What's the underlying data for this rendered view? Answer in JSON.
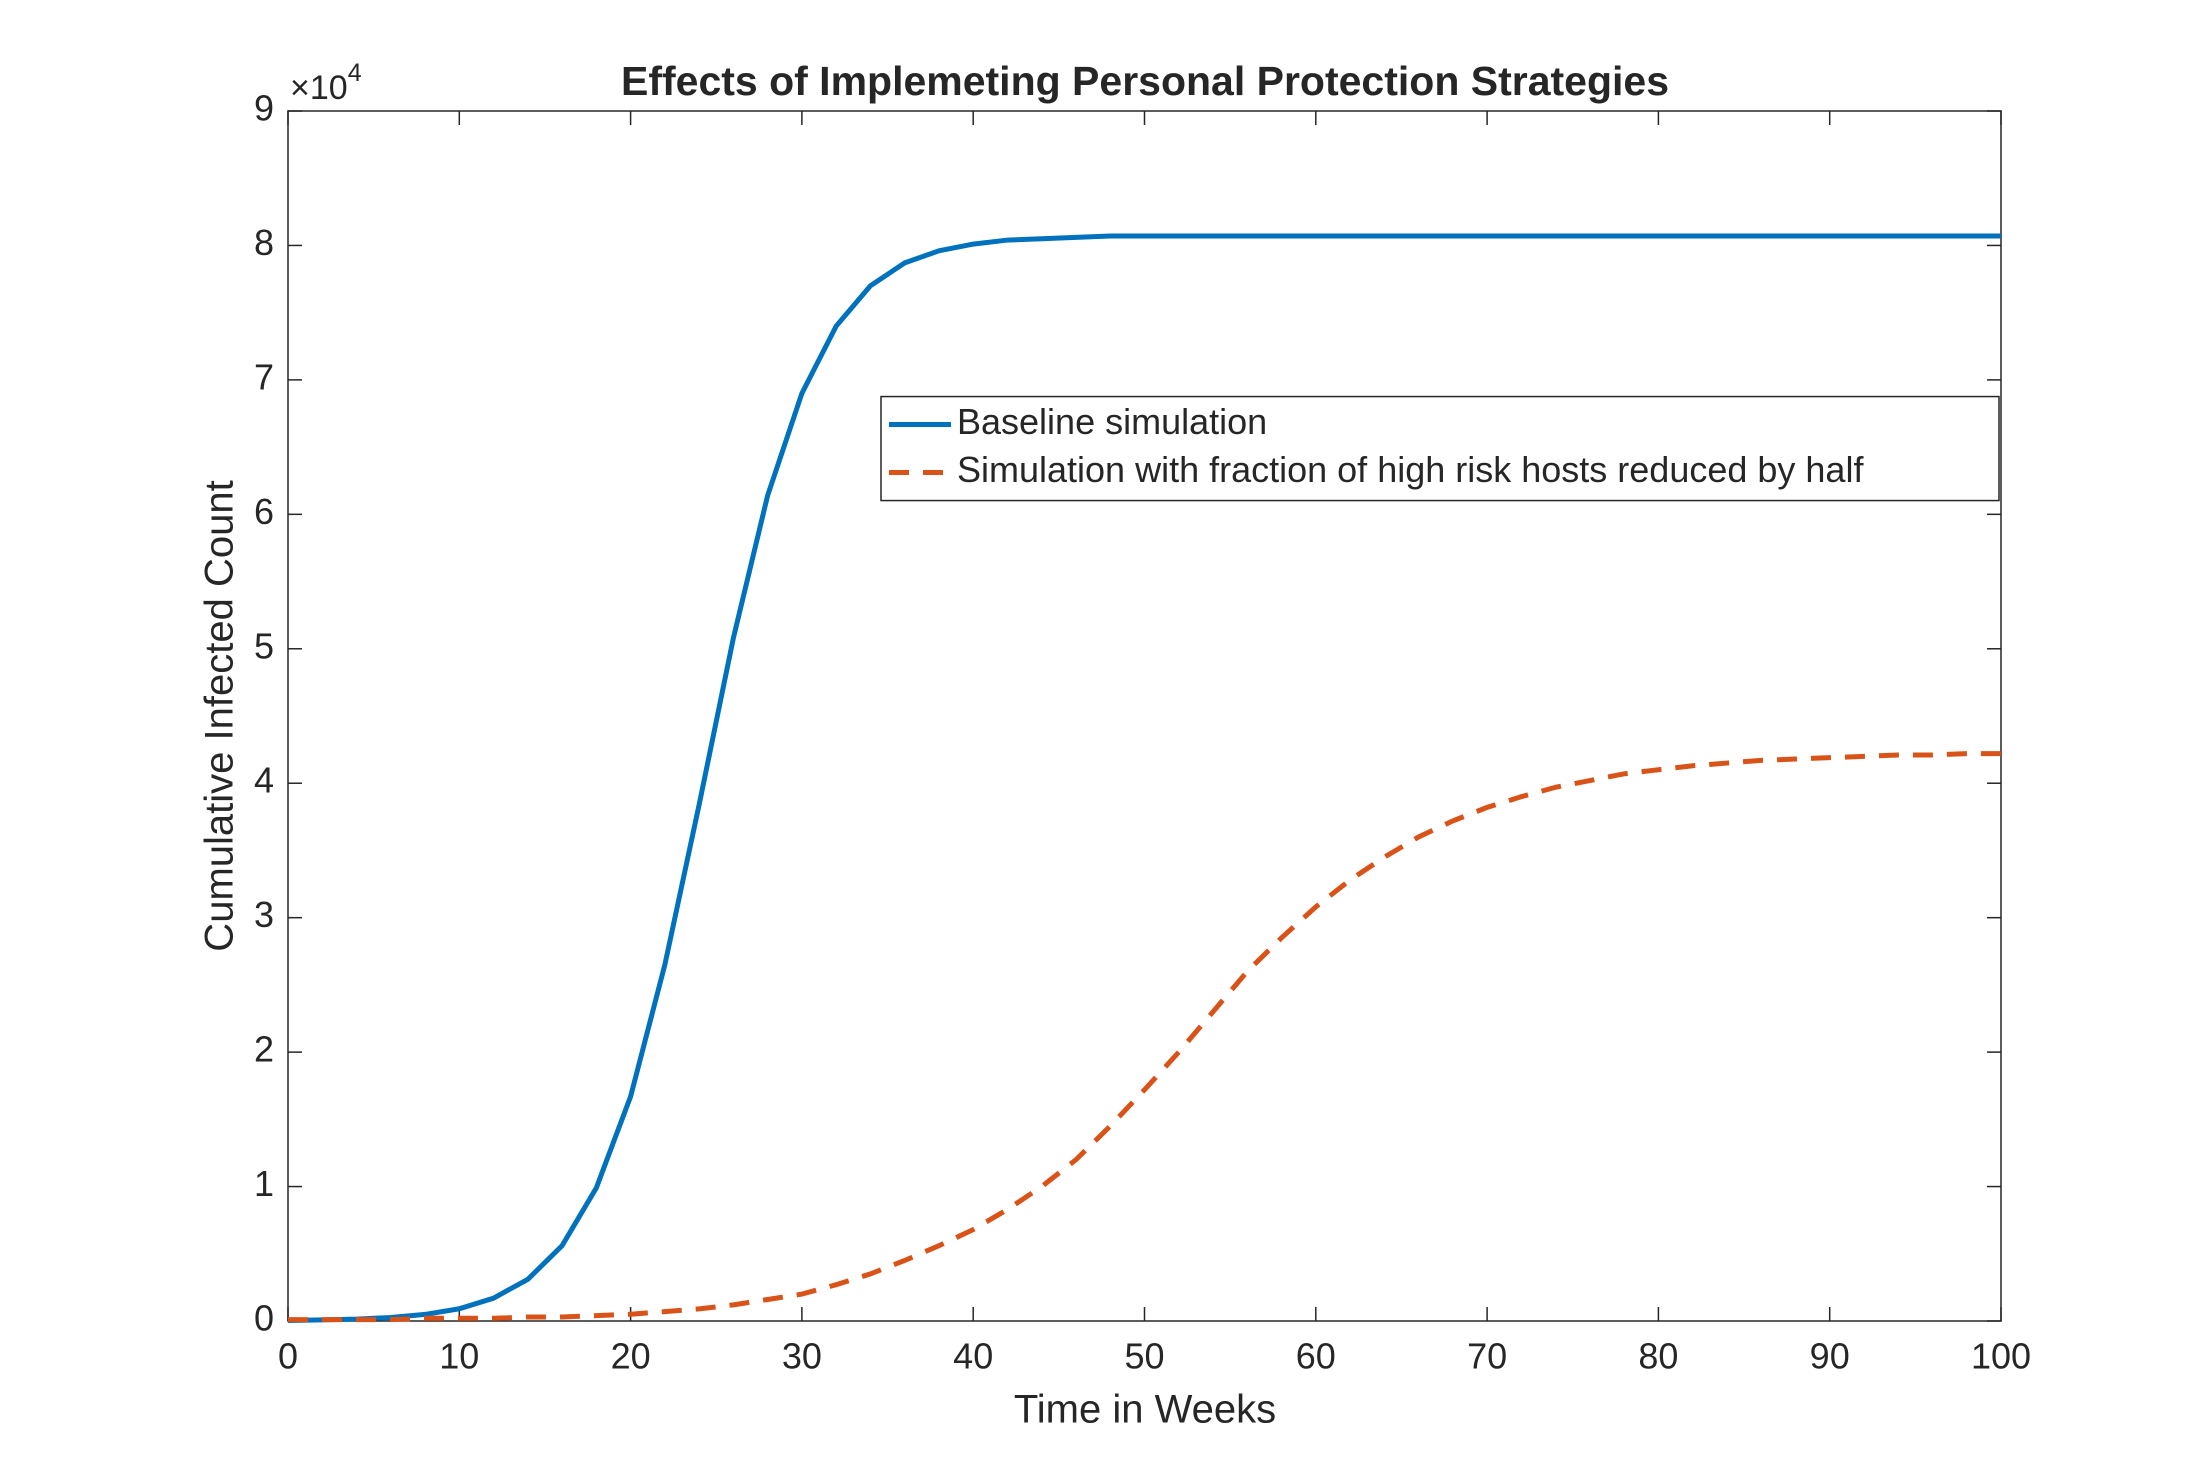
{
  "chart_data": {
    "type": "line",
    "title": "Effects of Implemeting Personal Protection Strategies",
    "x_label": "Time in Weeks",
    "y_label": "Cumulative Infected Count",
    "y_scale_label": "×10",
    "y_scale_exponent": "4",
    "xlim": [
      0,
      100
    ],
    "ylim": [
      0,
      9
    ],
    "xticks": [
      0,
      10,
      20,
      30,
      40,
      50,
      60,
      70,
      80,
      90,
      100
    ],
    "yticks": [
      0,
      1,
      2,
      3,
      4,
      5,
      6,
      7,
      8,
      9
    ],
    "grid": false,
    "legend_location": "east",
    "x": [
      0,
      2,
      4,
      6,
      8,
      10,
      12,
      14,
      16,
      18,
      20,
      22,
      24,
      26,
      28,
      30,
      32,
      34,
      36,
      38,
      40,
      42,
      44,
      46,
      48,
      50,
      52,
      54,
      56,
      58,
      60,
      62,
      64,
      66,
      68,
      70,
      72,
      74,
      76,
      78,
      80,
      82,
      84,
      86,
      88,
      90,
      92,
      94,
      96,
      98,
      100
    ],
    "series": [
      {
        "name": "Baseline simulation",
        "color": "#0072bd",
        "dash": "solid",
        "values": [
          0.004,
          0.008,
          0.014,
          0.026,
          0.049,
          0.091,
          0.17,
          0.31,
          0.56,
          0.99,
          1.67,
          2.65,
          3.84,
          5.08,
          6.14,
          6.9,
          7.4,
          7.7,
          7.87,
          7.96,
          8.01,
          8.04,
          8.05,
          8.06,
          8.07,
          8.07,
          8.07,
          8.07,
          8.07,
          8.07,
          8.07,
          8.07,
          8.07,
          8.07,
          8.07,
          8.07,
          8.07,
          8.07,
          8.07,
          8.07,
          8.07,
          8.07,
          8.07,
          8.07,
          8.07,
          8.07,
          8.07,
          8.07,
          8.07,
          8.07,
          8.07
        ]
      },
      {
        "name": "Simulation with fraction of high risk hosts reduced by half",
        "color": "#d95319",
        "dash": "dashed",
        "values": [
          0.01,
          0.01,
          0.01,
          0.01,
          0.02,
          0.02,
          0.02,
          0.03,
          0.03,
          0.04,
          0.05,
          0.07,
          0.09,
          0.12,
          0.16,
          0.2,
          0.27,
          0.35,
          0.45,
          0.56,
          0.68,
          0.83,
          1.0,
          1.2,
          1.45,
          1.72,
          2.0,
          2.3,
          2.6,
          2.85,
          3.08,
          3.28,
          3.45,
          3.6,
          3.72,
          3.82,
          3.9,
          3.97,
          4.02,
          4.07,
          4.1,
          4.13,
          4.15,
          4.17,
          4.18,
          4.19,
          4.2,
          4.21,
          4.21,
          4.22,
          4.22
        ]
      }
    ]
  }
}
